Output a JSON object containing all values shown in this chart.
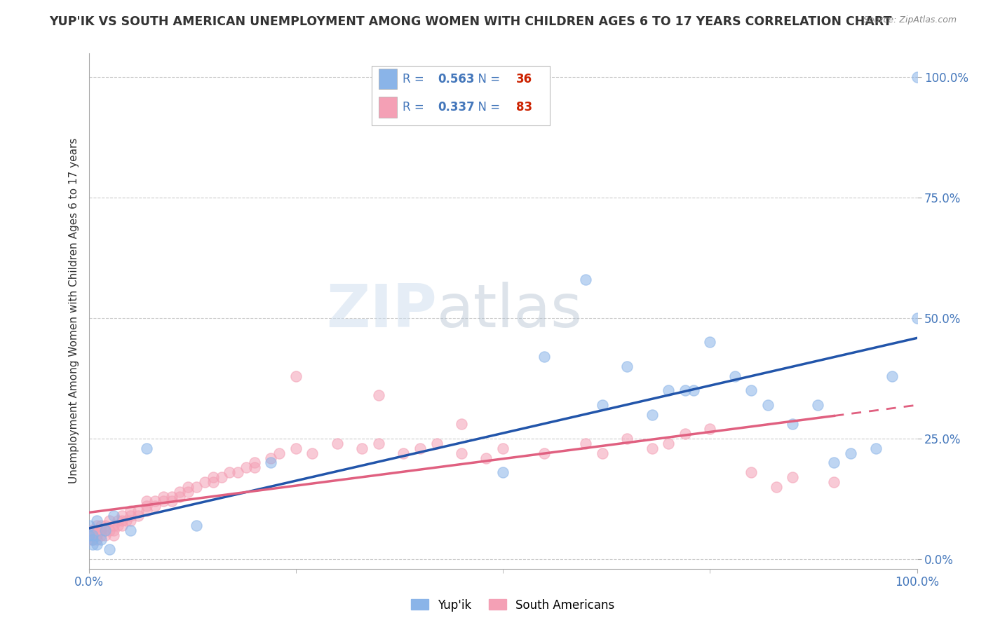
{
  "title": "YUP'IK VS SOUTH AMERICAN UNEMPLOYMENT AMONG WOMEN WITH CHILDREN AGES 6 TO 17 YEARS CORRELATION CHART",
  "source": "Source: ZipAtlas.com",
  "ylabel": "Unemployment Among Women with Children Ages 6 to 17 years",
  "xlim": [
    0.0,
    1.0
  ],
  "ylim": [
    -0.02,
    1.05
  ],
  "yticks": [
    0.0,
    0.25,
    0.5,
    0.75,
    1.0
  ],
  "ytick_labels": [
    "0.0%",
    "25.0%",
    "50.0%",
    "75.0%",
    "100.0%"
  ],
  "xtick_labels": [
    "0.0%",
    "100.0%"
  ],
  "xticks": [
    0.0,
    1.0
  ],
  "yup_ik_R": 0.563,
  "yup_ik_N": 36,
  "south_american_R": 0.337,
  "south_american_N": 83,
  "blue_color": "#8AB4E8",
  "pink_color": "#F4A0B5",
  "blue_line_color": "#2255AA",
  "pink_line_color": "#E06080",
  "watermark": "ZIPatlas",
  "background_color": "#FFFFFF",
  "grid_color": "#CCCCCC",
  "tick_color": "#4477BB",
  "yup_ik_x": [
    0.005,
    0.01,
    0.015,
    0.02,
    0.025,
    0.0,
    0.005,
    0.01,
    0.0,
    0.005,
    0.07,
    0.13,
    0.22,
    0.05,
    0.03,
    0.5,
    0.55,
    0.62,
    0.7,
    0.73,
    0.78,
    0.82,
    0.85,
    0.88,
    0.92,
    0.95,
    0.97,
    1.0,
    1.0,
    0.6,
    0.75,
    0.8,
    0.65,
    0.9,
    0.68,
    0.72
  ],
  "yup_ik_y": [
    0.05,
    0.03,
    0.04,
    0.06,
    0.02,
    0.07,
    0.04,
    0.08,
    0.05,
    0.03,
    0.23,
    0.07,
    0.2,
    0.06,
    0.09,
    0.18,
    0.42,
    0.32,
    0.35,
    0.35,
    0.38,
    0.32,
    0.28,
    0.32,
    0.22,
    0.23,
    0.38,
    0.5,
    1.0,
    0.58,
    0.45,
    0.35,
    0.4,
    0.2,
    0.3,
    0.35
  ],
  "sa_x": [
    0.0,
    0.0,
    0.0,
    0.005,
    0.005,
    0.005,
    0.01,
    0.01,
    0.01,
    0.01,
    0.015,
    0.015,
    0.015,
    0.02,
    0.02,
    0.02,
    0.025,
    0.025,
    0.03,
    0.03,
    0.03,
    0.035,
    0.035,
    0.04,
    0.04,
    0.04,
    0.045,
    0.05,
    0.05,
    0.05,
    0.06,
    0.06,
    0.07,
    0.07,
    0.07,
    0.08,
    0.08,
    0.09,
    0.09,
    0.1,
    0.1,
    0.11,
    0.11,
    0.12,
    0.12,
    0.13,
    0.14,
    0.15,
    0.15,
    0.16,
    0.17,
    0.18,
    0.19,
    0.2,
    0.2,
    0.22,
    0.23,
    0.25,
    0.27,
    0.3,
    0.33,
    0.35,
    0.38,
    0.4,
    0.42,
    0.45,
    0.48,
    0.5,
    0.55,
    0.6,
    0.62,
    0.65,
    0.68,
    0.7,
    0.72,
    0.75,
    0.8,
    0.83,
    0.85,
    0.9,
    0.25,
    0.35,
    0.45
  ],
  "sa_y": [
    0.04,
    0.06,
    0.05,
    0.04,
    0.06,
    0.05,
    0.04,
    0.06,
    0.05,
    0.07,
    0.06,
    0.05,
    0.07,
    0.06,
    0.05,
    0.07,
    0.06,
    0.08,
    0.07,
    0.06,
    0.05,
    0.08,
    0.07,
    0.08,
    0.07,
    0.09,
    0.08,
    0.09,
    0.08,
    0.1,
    0.09,
    0.1,
    0.11,
    0.1,
    0.12,
    0.12,
    0.11,
    0.13,
    0.12,
    0.13,
    0.12,
    0.14,
    0.13,
    0.14,
    0.15,
    0.15,
    0.16,
    0.16,
    0.17,
    0.17,
    0.18,
    0.18,
    0.19,
    0.19,
    0.2,
    0.21,
    0.22,
    0.23,
    0.22,
    0.24,
    0.23,
    0.24,
    0.22,
    0.23,
    0.24,
    0.22,
    0.21,
    0.23,
    0.22,
    0.24,
    0.22,
    0.25,
    0.23,
    0.24,
    0.26,
    0.27,
    0.18,
    0.15,
    0.17,
    0.16,
    0.38,
    0.34,
    0.28
  ]
}
